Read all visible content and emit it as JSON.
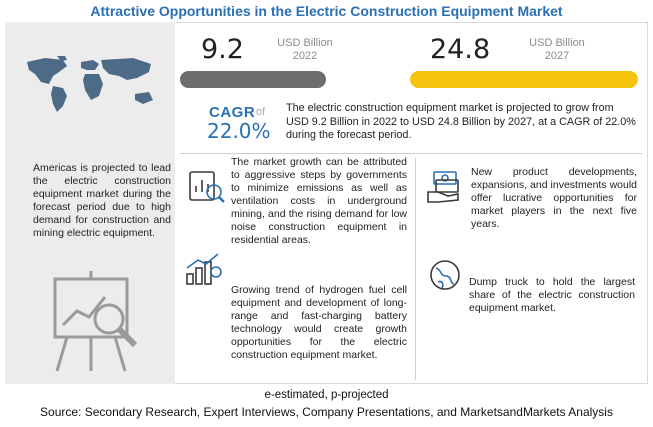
{
  "title": "Attractive Opportunities in the Electric Construction Equipment Market",
  "stat_2022": {
    "value": "9.2",
    "unit": "USD Billion",
    "year": "2022",
    "bar_fill_fraction": 0.37
  },
  "stat_2027": {
    "value": "24.8",
    "unit": "USD Billion",
    "year": "2027",
    "bar_fill_fraction": 1.0
  },
  "cagr": {
    "label": "CAGR",
    "of": "of",
    "value": "22.0%"
  },
  "projection_text": "The electric construction equipment market is projected to grow from USD 9.2 Billion in 2022 to USD 24.8 Billion by 2027, at a CAGR of 22.0% during the forecast period.",
  "left_panel": {
    "text": "Americas is projected to lead the electric construction equipment market during the forecast period due to high demand for construction and mining electric equipment."
  },
  "blocks": [
    {
      "icon": "analysis-report-icon",
      "text": "The market growth can be attributed to aggressive steps by governments to minimize emissions as well as ventilation costs in underground mining, and the rising demand for low noise construction equipment in residential areas."
    },
    {
      "icon": "growth-chart-icon",
      "text": "Growing trend of hydrogen fuel cell equipment and development of long-range and fast-charging battery technology would create growth opportunities for the electric construction equipment market."
    },
    {
      "icon": "money-hand-icon",
      "text": "New product developments, expansions, and investments would offer lucrative opportunities for market players in the next five years."
    },
    {
      "icon": "globe-icon",
      "text": "Dump truck to hold the largest share of the electric construction equipment market."
    }
  ],
  "footnote": "e-estimated, p-projected",
  "source": "Source: Secondary Research, Expert Interviews, Company Presentations, and MarketsandMarkets Analysis",
  "colors": {
    "accent_blue": "#2a6fb5",
    "bar_grey": "#6d6d6d",
    "bar_yellow": "#f6c30f"
  }
}
